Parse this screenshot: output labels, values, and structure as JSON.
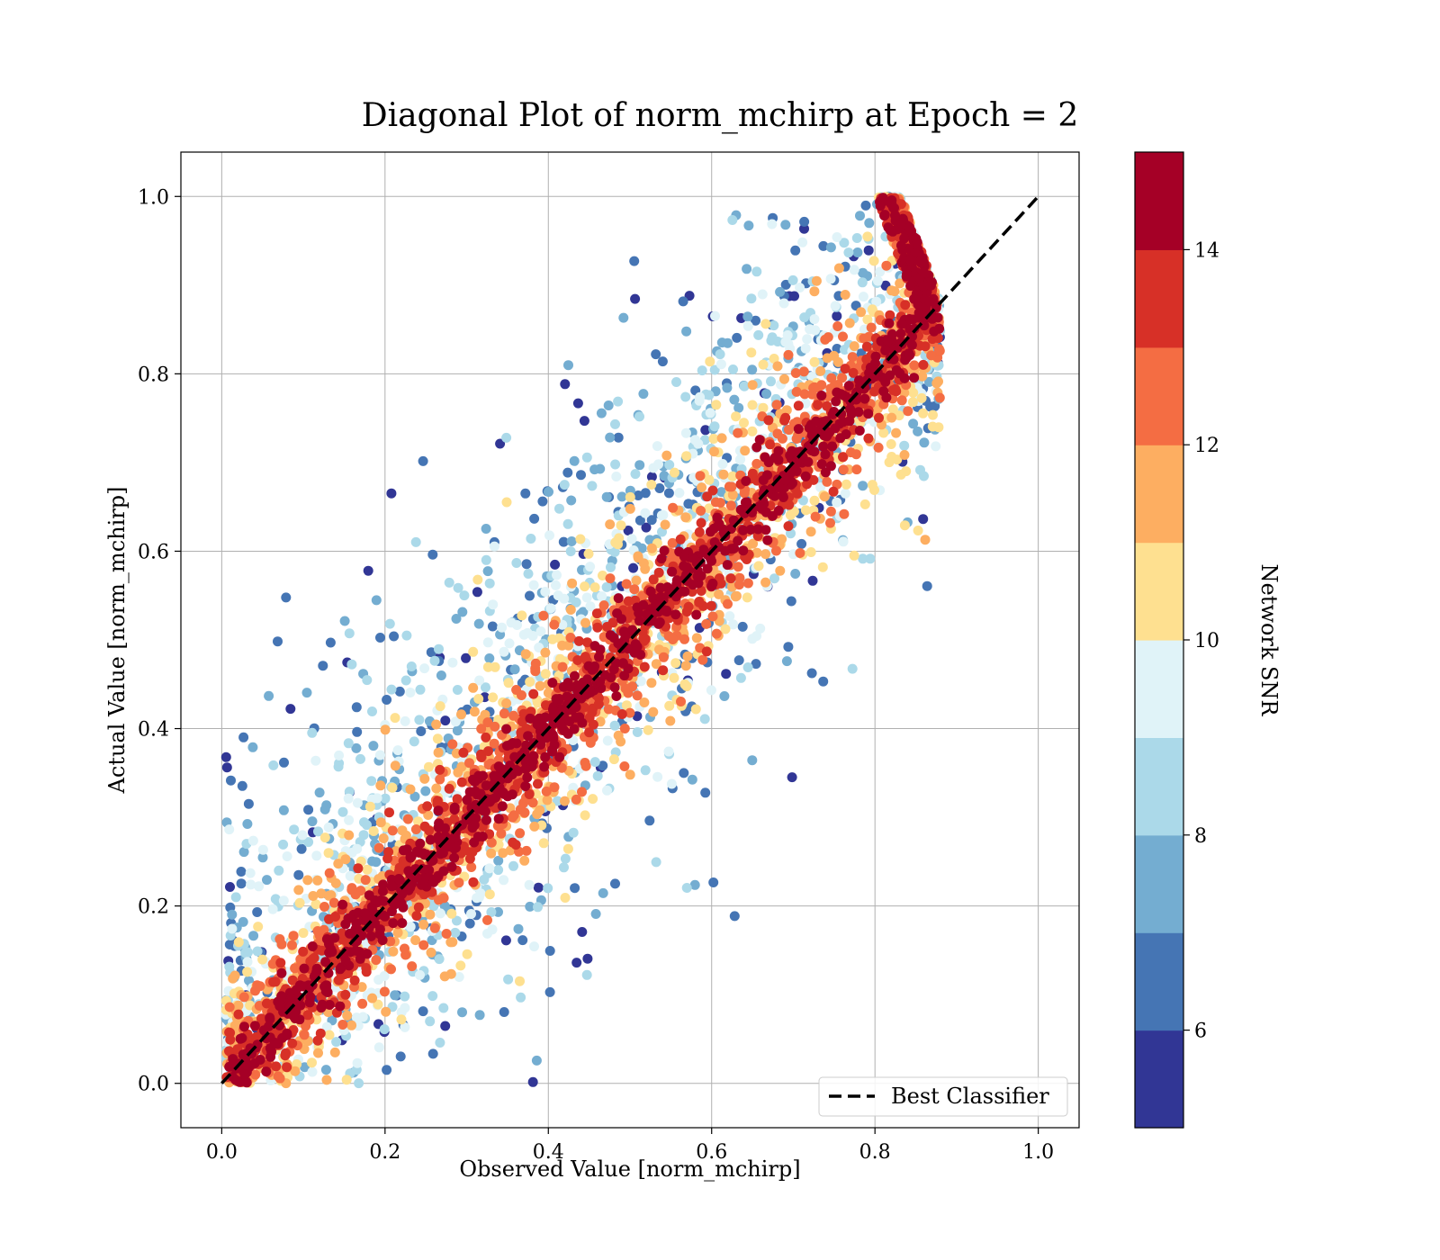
{
  "chart_data": {
    "type": "scatter",
    "title": "Diagonal Plot of norm_mchirp at Epoch = 2",
    "xlabel": "Observed Value [norm_mchirp]",
    "ylabel": "Actual Value [norm_mchirp]",
    "xlim": [
      -0.05,
      1.05
    ],
    "ylim": [
      -0.05,
      1.05
    ],
    "xticks": [
      0.0,
      0.2,
      0.4,
      0.6,
      0.8,
      1.0
    ],
    "yticks": [
      0.0,
      0.2,
      0.4,
      0.6,
      0.8,
      1.0
    ],
    "x_tick_labels": [
      "0.0",
      "0.2",
      "0.4",
      "0.6",
      "0.8",
      "1.0"
    ],
    "y_tick_labels": [
      "0.0",
      "0.2",
      "0.4",
      "0.6",
      "0.8",
      "1.0"
    ],
    "grid": true,
    "legend": {
      "placement": "lower-right",
      "entries": [
        {
          "label": "Best Classifier",
          "style": "dashed",
          "color": "#000000"
        }
      ]
    },
    "reference_line": {
      "name": "Best Classifier",
      "x": [
        0.0,
        1.0
      ],
      "y": [
        0.0,
        1.0
      ]
    },
    "points_summary": "dense cloud of points along the diagonal; high-SNR points (dark red) concentrated near y=x, low-SNR points (blue) scattered widely, mostly above the diagonal for observed < 0.5; observed values range about 0.0 to 0.88, actual values 0.0 to 1.0",
    "colorbar": {
      "label": "Network SNR",
      "range": [
        5,
        15
      ],
      "ticks": [
        6,
        8,
        10,
        12,
        14
      ],
      "tick_labels": [
        "6",
        "8",
        "10",
        "12",
        "14"
      ],
      "colors": [
        "#313695",
        "#4575b4",
        "#74add1",
        "#abd9e9",
        "#e0f3f8",
        "#fee090",
        "#fdae61",
        "#f46d43",
        "#d73027",
        "#a50026"
      ]
    }
  }
}
